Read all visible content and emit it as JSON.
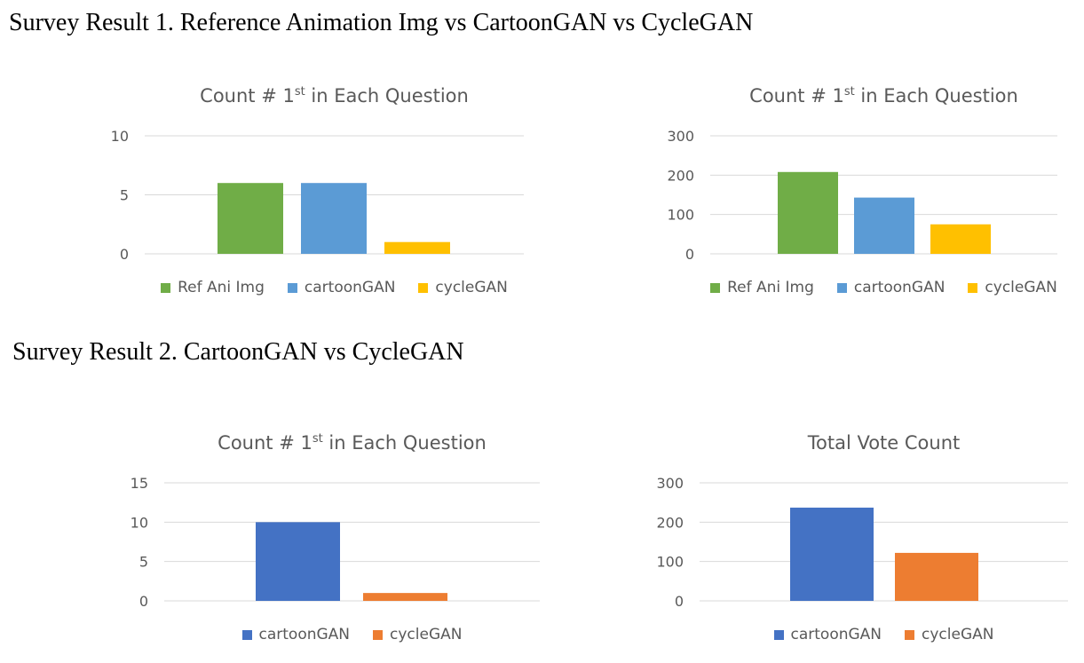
{
  "sections": [
    {
      "title": "Survey Result 1. Reference Animation Img vs CartoonGAN vs CycleGAN"
    },
    {
      "title": "Survey Result 2. CartoonGAN vs CycleGAN"
    }
  ],
  "chart_data": [
    {
      "type": "bar",
      "title_main": "Count # 1",
      "title_sup": "st",
      "title_rest": " in Each Question",
      "categories": [
        ""
      ],
      "series": [
        {
          "name": "Ref Ani Img",
          "values": [
            6
          ],
          "color": "#70AD47"
        },
        {
          "name": "cartoonGAN",
          "values": [
            6
          ],
          "color": "#5B9BD5"
        },
        {
          "name": "cycleGAN",
          "values": [
            1
          ],
          "color": "#FFC000"
        }
      ],
      "ylim": [
        0,
        10
      ],
      "yticks": [
        0,
        5,
        10
      ],
      "grid": true,
      "legend": "bottom"
    },
    {
      "type": "bar",
      "title_main": "Count # 1",
      "title_sup": "st",
      "title_rest": " in Each Question",
      "categories": [
        ""
      ],
      "series": [
        {
          "name": "Ref Ani Img",
          "values": [
            208
          ],
          "color": "#70AD47"
        },
        {
          "name": "cartoonGAN",
          "values": [
            143
          ],
          "color": "#5B9BD5"
        },
        {
          "name": "cycleGAN",
          "values": [
            75
          ],
          "color": "#FFC000"
        }
      ],
      "ylim": [
        0,
        300
      ],
      "yticks": [
        0,
        100,
        200,
        300
      ],
      "grid": true,
      "legend": "bottom"
    },
    {
      "type": "bar",
      "title_main": "Count # 1",
      "title_sup": "st",
      "title_rest": " in Each Question",
      "categories": [
        ""
      ],
      "series": [
        {
          "name": "cartoonGAN",
          "values": [
            10
          ],
          "color": "#4472C4"
        },
        {
          "name": "cycleGAN",
          "values": [
            1
          ],
          "color": "#ED7D31"
        }
      ],
      "ylim": [
        0,
        15
      ],
      "yticks": [
        0,
        5,
        10,
        15
      ],
      "grid": true,
      "legend": "bottom"
    },
    {
      "type": "bar",
      "title_main": "Total Vote Count",
      "title_sup": "",
      "title_rest": "",
      "categories": [
        ""
      ],
      "series": [
        {
          "name": "cartoonGAN",
          "values": [
            237
          ],
          "color": "#4472C4"
        },
        {
          "name": "cycleGAN",
          "values": [
            122
          ],
          "color": "#ED7D31"
        }
      ],
      "ylim": [
        0,
        300
      ],
      "yticks": [
        0,
        100,
        200,
        300
      ],
      "grid": true,
      "legend": "bottom"
    }
  ]
}
